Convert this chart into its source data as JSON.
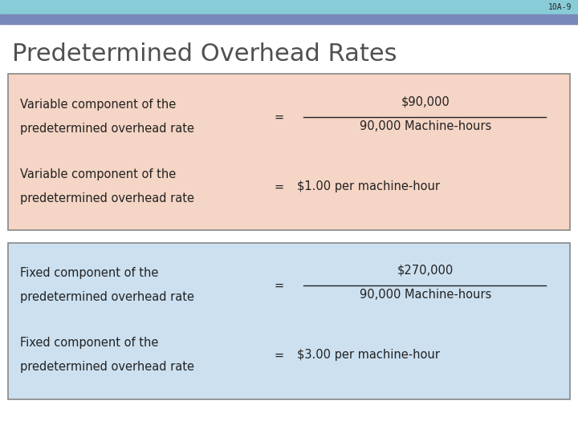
{
  "title": "Predetermined Overhead Rates",
  "slide_id": "10A-9",
  "bg_color": "#ffffff",
  "header_color1": "#88ccd8",
  "header_color2": "#7888b8",
  "title_color": "#505050",
  "box1_bg": "#f5d5c5",
  "box1_border": "#888888",
  "box2_bg": "#cce0f0",
  "box2_border": "#888888",
  "variable_label1_l1": "Variable component of the",
  "variable_label1_l2": "predetermined overhead rate",
  "variable_eq1_num": "$90,000",
  "variable_eq1_den": "90,000 Machine-hours",
  "variable_label2_l1": "Variable component of the",
  "variable_label2_l2": "predetermined overhead rate",
  "variable_eq2_result": "$1.00 per machine-hour",
  "fixed_label1_l1": "Fixed component of the",
  "fixed_label1_l2": "predetermined overhead rate",
  "fixed_eq1_num": "$270,000",
  "fixed_eq1_den": "90,000 Machine-hours",
  "fixed_label2_l1": "Fixed component of the",
  "fixed_label2_l2": "predetermined overhead rate",
  "fixed_eq2_result": "$3.00 per machine-hour",
  "text_color": "#222222",
  "font_size_title": 22,
  "font_size_body": 10.5,
  "font_size_slide_id": 7
}
